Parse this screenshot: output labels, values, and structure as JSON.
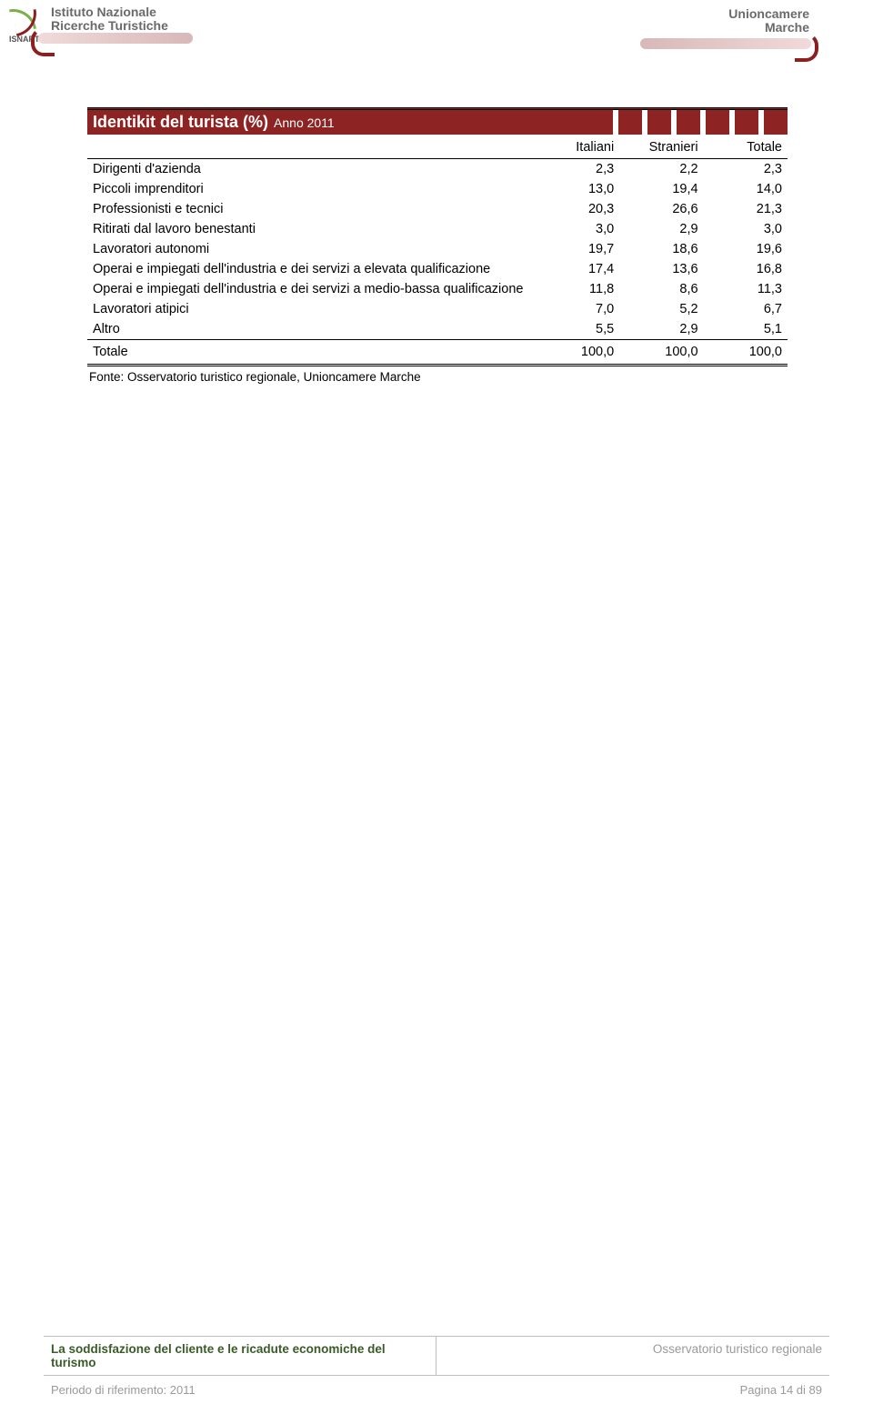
{
  "header": {
    "isnart_label": "ISNART",
    "inrt_line1": "Istituto Nazionale",
    "inrt_line2": "Ricerche Turistiche",
    "uc_line1": "Unioncamere",
    "uc_line2": "Marche"
  },
  "table": {
    "title_main": "Identikit del turista (%)",
    "title_suffix": "Anno 2011",
    "title_bar_bg": "#8e2323",
    "columns": [
      "",
      "Italiani",
      "Stranieri",
      "Totale"
    ],
    "col_widths_pct": [
      64,
      12,
      12,
      12
    ],
    "rows": [
      {
        "label": "Dirigenti d'azienda",
        "vals": [
          "2,3",
          "2,2",
          "2,3"
        ]
      },
      {
        "label": "Piccoli imprenditori",
        "vals": [
          "13,0",
          "19,4",
          "14,0"
        ]
      },
      {
        "label": "Professionisti e tecnici",
        "vals": [
          "20,3",
          "26,6",
          "21,3"
        ]
      },
      {
        "label": "Ritirati dal lavoro benestanti",
        "vals": [
          "3,0",
          "2,9",
          "3,0"
        ]
      },
      {
        "label": "Lavoratori autonomi",
        "vals": [
          "19,7",
          "18,6",
          "19,6"
        ]
      },
      {
        "label": "Operai e impiegati dell'industria e dei servizi a elevata qualificazione",
        "vals": [
          "17,4",
          "13,6",
          "16,8"
        ]
      },
      {
        "label": "Operai e impiegati dell'industria e dei servizi a medio-bassa qualificazione",
        "vals": [
          "11,8",
          "8,6",
          "11,3"
        ]
      },
      {
        "label": "Lavoratori atipici",
        "vals": [
          "7,0",
          "5,2",
          "6,7"
        ]
      },
      {
        "label": "Altro",
        "vals": [
          "5,5",
          "2,9",
          "5,1"
        ]
      }
    ],
    "total_row": {
      "label": "Totale",
      "vals": [
        "100,0",
        "100,0",
        "100,0"
      ]
    },
    "source_text": "Fonte: Osservatorio turistico regionale,  Unioncamere Marche"
  },
  "footer": {
    "left_bold": "La soddisfazione del cliente e le ricadute economiche del turismo",
    "right_gray": "Osservatorio turistico regionale",
    "period": "Periodo di riferimento: 2011",
    "page": "Pagina 14 di 89"
  },
  "style": {
    "page_bg": "#ffffff",
    "text_color": "#000000",
    "footer_gray": "#9a9a9a",
    "footer_green": "#3a5a28",
    "border_gray": "#bfbfbf",
    "font_family": "Arial",
    "body_fontsize_pt": 11,
    "title_fontsize_pt": 14
  }
}
